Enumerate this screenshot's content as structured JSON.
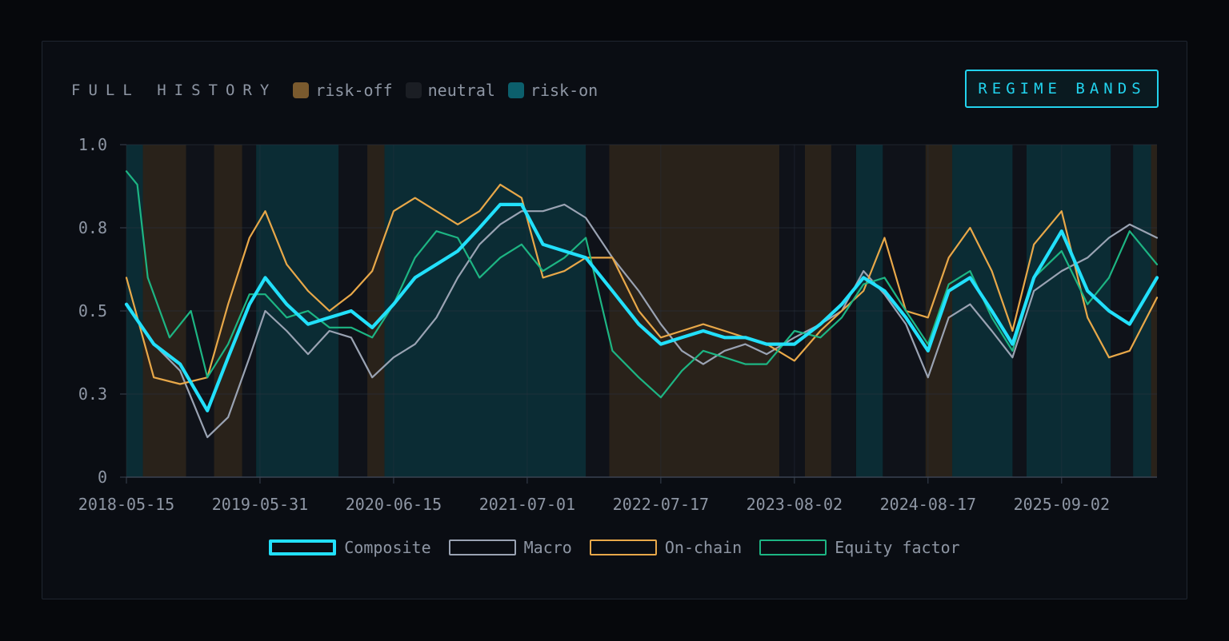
{
  "header": {
    "title": "FULL HISTORY",
    "bands": [
      {
        "label": "risk-off",
        "color": "#7a5a2e"
      },
      {
        "label": "neutral",
        "color": "#1b1e24"
      },
      {
        "label": "risk-on",
        "color": "#0c5f6c"
      }
    ],
    "button_label": "REGIME BANDS"
  },
  "chart_data": {
    "type": "line",
    "x_type": "date",
    "xlim": [
      "2018-05-15",
      "2026-06-01"
    ],
    "ylim": [
      0,
      1
    ],
    "x_ticks": [
      "2018-05-15",
      "2019-05-31",
      "2020-06-15",
      "2021-07-01",
      "2022-07-17",
      "2023-08-02",
      "2024-08-17",
      "2025-09-02"
    ],
    "y_ticks": [
      {
        "value": 0,
        "label": "0"
      },
      {
        "value": 0.25,
        "label": "0.3"
      },
      {
        "value": 0.5,
        "label": "0.5"
      },
      {
        "value": 0.75,
        "label": "0.8"
      },
      {
        "value": 1,
        "label": "1.0"
      }
    ],
    "grid": true,
    "regimes": [
      {
        "start": "2018-05-15",
        "end": "2018-07-01",
        "regime": "risk-on"
      },
      {
        "start": "2018-07-01",
        "end": "2018-11-01",
        "regime": "risk-off"
      },
      {
        "start": "2018-11-01",
        "end": "2019-01-20",
        "regime": "neutral"
      },
      {
        "start": "2019-01-20",
        "end": "2019-04-10",
        "regime": "risk-off"
      },
      {
        "start": "2019-04-10",
        "end": "2019-05-20",
        "regime": "neutral"
      },
      {
        "start": "2019-05-20",
        "end": "2020-01-10",
        "regime": "risk-on"
      },
      {
        "start": "2020-01-10",
        "end": "2020-04-01",
        "regime": "neutral"
      },
      {
        "start": "2020-04-01",
        "end": "2020-05-20",
        "regime": "risk-off"
      },
      {
        "start": "2020-05-20",
        "end": "2021-12-15",
        "regime": "risk-on"
      },
      {
        "start": "2021-12-15",
        "end": "2022-02-20",
        "regime": "neutral"
      },
      {
        "start": "2022-02-20",
        "end": "2023-06-20",
        "regime": "risk-off"
      },
      {
        "start": "2023-06-20",
        "end": "2023-09-01",
        "regime": "neutral"
      },
      {
        "start": "2023-09-01",
        "end": "2023-11-15",
        "regime": "risk-off"
      },
      {
        "start": "2023-11-15",
        "end": "2024-01-25",
        "regime": "neutral"
      },
      {
        "start": "2024-01-25",
        "end": "2024-04-10",
        "regime": "risk-on"
      },
      {
        "start": "2024-04-10",
        "end": "2024-08-10",
        "regime": "neutral"
      },
      {
        "start": "2024-08-10",
        "end": "2024-10-25",
        "regime": "risk-off"
      },
      {
        "start": "2024-10-25",
        "end": "2025-04-15",
        "regime": "risk-on"
      },
      {
        "start": "2025-04-15",
        "end": "2025-05-25",
        "regime": "neutral"
      },
      {
        "start": "2025-05-25",
        "end": "2026-01-20",
        "regime": "risk-on"
      },
      {
        "start": "2026-01-20",
        "end": "2026-03-25",
        "regime": "neutral"
      },
      {
        "start": "2026-03-25",
        "end": "2026-05-15",
        "regime": "risk-on"
      },
      {
        "start": "2026-05-15",
        "end": "2026-06-01",
        "regime": "risk-off"
      }
    ],
    "series": [
      {
        "name": "Macro",
        "color": "#9aa3b3",
        "width": 2.2,
        "x": [
          "2018-05-15",
          "2018-08-01",
          "2018-10-15",
          "2019-01-01",
          "2019-03-01",
          "2019-05-01",
          "2019-06-15",
          "2019-08-15",
          "2019-10-15",
          "2019-12-15",
          "2020-02-15",
          "2020-04-15",
          "2020-06-15",
          "2020-08-15",
          "2020-10-15",
          "2020-12-15",
          "2021-02-15",
          "2021-04-15",
          "2021-06-15",
          "2021-08-15",
          "2021-10-15",
          "2021-12-15",
          "2022-03-01",
          "2022-05-15",
          "2022-07-17",
          "2022-09-15",
          "2022-11-15",
          "2023-01-15",
          "2023-03-15",
          "2023-05-15",
          "2023-08-02",
          "2023-10-15",
          "2023-12-15",
          "2024-02-15",
          "2024-04-15",
          "2024-06-15",
          "2024-08-17",
          "2024-10-15",
          "2024-12-15",
          "2025-02-15",
          "2025-04-15",
          "2025-06-15",
          "2025-09-02",
          "2025-11-15",
          "2026-01-15",
          "2026-03-15",
          "2026-06-01"
        ],
        "values": [
          0.52,
          0.4,
          0.32,
          0.12,
          0.18,
          0.36,
          0.5,
          0.44,
          0.37,
          0.44,
          0.42,
          0.3,
          0.36,
          0.4,
          0.48,
          0.6,
          0.7,
          0.76,
          0.8,
          0.8,
          0.82,
          0.78,
          0.66,
          0.56,
          0.46,
          0.38,
          0.34,
          0.38,
          0.4,
          0.37,
          0.42,
          0.46,
          0.5,
          0.62,
          0.55,
          0.46,
          0.3,
          0.48,
          0.52,
          0.44,
          0.36,
          0.56,
          0.62,
          0.66,
          0.72,
          0.76,
          0.72
        ]
      },
      {
        "name": "On-chain",
        "color": "#e8a849",
        "width": 2.2,
        "x": [
          "2018-05-15",
          "2018-08-01",
          "2018-10-15",
          "2019-01-01",
          "2019-03-01",
          "2019-05-01",
          "2019-06-15",
          "2019-08-15",
          "2019-10-15",
          "2019-12-15",
          "2020-02-15",
          "2020-04-15",
          "2020-06-15",
          "2020-08-15",
          "2020-10-15",
          "2020-12-15",
          "2021-02-15",
          "2021-04-15",
          "2021-06-15",
          "2021-08-15",
          "2021-10-15",
          "2021-12-15",
          "2022-03-01",
          "2022-05-15",
          "2022-07-17",
          "2022-09-15",
          "2022-11-15",
          "2023-01-15",
          "2023-03-15",
          "2023-05-15",
          "2023-08-02",
          "2023-10-15",
          "2023-12-15",
          "2024-02-15",
          "2024-04-15",
          "2024-06-15",
          "2024-08-17",
          "2024-10-15",
          "2024-12-15",
          "2025-02-15",
          "2025-04-15",
          "2025-06-15",
          "2025-09-02",
          "2025-11-15",
          "2026-01-15",
          "2026-03-15",
          "2026-06-01"
        ],
        "values": [
          0.6,
          0.3,
          0.28,
          0.3,
          0.52,
          0.72,
          0.8,
          0.64,
          0.56,
          0.5,
          0.55,
          0.62,
          0.8,
          0.84,
          0.8,
          0.76,
          0.8,
          0.88,
          0.84,
          0.6,
          0.62,
          0.66,
          0.66,
          0.5,
          0.42,
          0.44,
          0.46,
          0.44,
          0.42,
          0.4,
          0.35,
          0.44,
          0.5,
          0.56,
          0.72,
          0.5,
          0.48,
          0.66,
          0.75,
          0.62,
          0.44,
          0.7,
          0.8,
          0.48,
          0.36,
          0.38,
          0.54
        ]
      },
      {
        "name": "Equity factor",
        "color": "#1db583",
        "width": 2.2,
        "x": [
          "2018-05-15",
          "2018-06-15",
          "2018-07-15",
          "2018-09-15",
          "2018-11-15",
          "2019-01-01",
          "2019-03-01",
          "2019-05-01",
          "2019-06-15",
          "2019-08-15",
          "2019-10-15",
          "2019-12-15",
          "2020-02-15",
          "2020-04-15",
          "2020-06-15",
          "2020-08-15",
          "2020-10-15",
          "2020-12-15",
          "2021-02-15",
          "2021-04-15",
          "2021-06-15",
          "2021-08-15",
          "2021-10-15",
          "2021-12-15",
          "2022-03-01",
          "2022-05-15",
          "2022-07-17",
          "2022-09-15",
          "2022-11-15",
          "2023-01-15",
          "2023-03-15",
          "2023-05-15",
          "2023-08-02",
          "2023-10-15",
          "2023-12-15",
          "2024-02-15",
          "2024-04-15",
          "2024-06-15",
          "2024-08-17",
          "2024-10-15",
          "2024-12-15",
          "2025-02-15",
          "2025-04-15",
          "2025-06-15",
          "2025-09-02",
          "2025-11-15",
          "2026-01-15",
          "2026-03-15",
          "2026-06-01"
        ],
        "values": [
          0.92,
          0.88,
          0.6,
          0.42,
          0.5,
          0.3,
          0.4,
          0.55,
          0.55,
          0.48,
          0.5,
          0.45,
          0.45,
          0.42,
          0.52,
          0.66,
          0.74,
          0.72,
          0.6,
          0.66,
          0.7,
          0.62,
          0.66,
          0.72,
          0.38,
          0.3,
          0.24,
          0.32,
          0.38,
          0.36,
          0.34,
          0.34,
          0.44,
          0.42,
          0.48,
          0.58,
          0.6,
          0.5,
          0.4,
          0.58,
          0.62,
          0.48,
          0.38,
          0.6,
          0.68,
          0.52,
          0.6,
          0.74,
          0.64
        ]
      },
      {
        "name": "Composite",
        "color": "#22e0fb",
        "width": 4.2,
        "x": [
          "2018-05-15",
          "2018-08-01",
          "2018-10-15",
          "2019-01-01",
          "2019-03-01",
          "2019-05-01",
          "2019-06-15",
          "2019-08-15",
          "2019-10-15",
          "2019-12-15",
          "2020-02-15",
          "2020-04-15",
          "2020-06-15",
          "2020-08-15",
          "2020-10-15",
          "2020-12-15",
          "2021-02-15",
          "2021-04-15",
          "2021-06-15",
          "2021-08-15",
          "2021-10-15",
          "2021-12-15",
          "2022-03-01",
          "2022-05-15",
          "2022-07-17",
          "2022-09-15",
          "2022-11-15",
          "2023-01-15",
          "2023-03-15",
          "2023-05-15",
          "2023-08-02",
          "2023-10-15",
          "2023-12-15",
          "2024-02-15",
          "2024-04-15",
          "2024-06-15",
          "2024-08-17",
          "2024-10-15",
          "2024-12-15",
          "2025-02-15",
          "2025-04-15",
          "2025-06-15",
          "2025-09-02",
          "2025-11-15",
          "2026-01-15",
          "2026-03-15",
          "2026-06-01"
        ],
        "values": [
          0.52,
          0.4,
          0.34,
          0.2,
          0.36,
          0.52,
          0.6,
          0.52,
          0.46,
          0.48,
          0.5,
          0.45,
          0.52,
          0.6,
          0.64,
          0.68,
          0.75,
          0.82,
          0.82,
          0.7,
          0.68,
          0.66,
          0.56,
          0.46,
          0.4,
          0.42,
          0.44,
          0.42,
          0.42,
          0.4,
          0.4,
          0.46,
          0.52,
          0.6,
          0.56,
          0.48,
          0.38,
          0.56,
          0.6,
          0.5,
          0.4,
          0.6,
          0.74,
          0.56,
          0.5,
          0.46,
          0.6
        ]
      }
    ]
  }
}
